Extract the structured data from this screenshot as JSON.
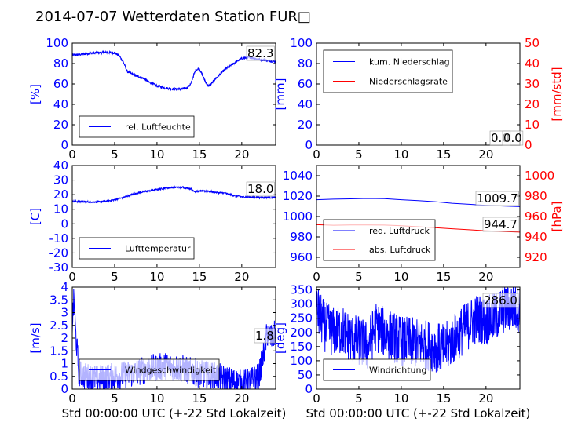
{
  "title": "2014-07-07 Wetterdaten Station FUR□",
  "colors": {
    "blue": "#0000ff",
    "red": "#ff0000",
    "black": "#000000"
  },
  "chart_data": [
    {
      "id": "humidity",
      "type": "line",
      "xlim": [
        0,
        24
      ],
      "ylim": [
        0,
        100
      ],
      "xticks": [
        0,
        5,
        10,
        15,
        20
      ],
      "yticks": [
        0,
        20,
        40,
        60,
        80,
        100
      ],
      "ylabel": "[%]",
      "legend_position": "lower-left",
      "annotation": "82.3",
      "series": [
        {
          "name": "rel. Luftfeuchte",
          "color": "#0000ff",
          "noise": 1.2,
          "x": [
            0,
            1,
            2,
            3,
            4,
            5,
            5.5,
            6,
            6.5,
            7,
            7.5,
            8,
            8.5,
            9,
            10,
            11,
            12,
            13,
            13.5,
            14,
            14.3,
            14.6,
            15,
            15.5,
            16,
            16.3,
            17,
            18,
            19,
            20,
            21,
            22,
            23,
            24
          ],
          "y": [
            88,
            89,
            90,
            90.5,
            91,
            90.5,
            88,
            82,
            72,
            70,
            68,
            67,
            65,
            62,
            58,
            56,
            55,
            55,
            56,
            60,
            68,
            74,
            75,
            66,
            58,
            59,
            66,
            74,
            80,
            85,
            86,
            84,
            83,
            82
          ]
        }
      ]
    },
    {
      "id": "precip",
      "type": "line",
      "xlim": [
        0,
        24
      ],
      "ylim": [
        0,
        100
      ],
      "y2lim": [
        0,
        50
      ],
      "xticks": [
        0,
        5,
        10,
        15,
        20
      ],
      "yticks": [
        0,
        20,
        40,
        60,
        80,
        100
      ],
      "y2ticks": [
        0,
        10,
        20,
        30,
        40,
        50
      ],
      "ylabel": "[mm]",
      "y2label": "[mm/std]",
      "legend_position": "upper-left",
      "annotation": "0.0",
      "annotation2": "0.0",
      "series": [
        {
          "name": "kum. Niederschlag",
          "color": "#0000ff",
          "x": [
            0,
            24
          ],
          "y": [
            0,
            0
          ]
        },
        {
          "name": "Niederschlagsrate",
          "color": "#ff0000",
          "x": [
            0,
            24
          ],
          "y": [
            0,
            0
          ],
          "axis": "right"
        }
      ]
    },
    {
      "id": "temperature",
      "type": "line",
      "xlim": [
        0,
        24
      ],
      "ylim": [
        -30,
        40
      ],
      "xticks": [
        0,
        5,
        10,
        15,
        20
      ],
      "yticks": [
        -30,
        -20,
        -10,
        0,
        10,
        20,
        30,
        40
      ],
      "ylabel": "[C]",
      "legend_position": "lower-left",
      "annotation": "18.0",
      "series": [
        {
          "name": "Lufttemperatur",
          "color": "#0000ff",
          "noise": 0.6,
          "x": [
            0,
            1,
            2,
            3,
            4,
            5,
            6,
            7,
            8,
            9,
            10,
            11,
            12,
            13,
            14,
            14.5,
            15,
            16,
            17,
            18,
            19,
            20,
            21,
            22,
            23,
            24
          ],
          "y": [
            15.5,
            15.2,
            15,
            15,
            15.5,
            16.5,
            18,
            20,
            21.5,
            22.5,
            23.5,
            24.5,
            25,
            25,
            24,
            22,
            22.5,
            22.5,
            21.5,
            21,
            19.5,
            18.5,
            18.5,
            18,
            18,
            18
          ]
        }
      ]
    },
    {
      "id": "pressure",
      "type": "line",
      "xlim": [
        0,
        24
      ],
      "ylim": [
        950,
        1050
      ],
      "y2lim": [
        910,
        1010
      ],
      "xticks": [
        0,
        5,
        10,
        15,
        20
      ],
      "yticks": [
        960,
        980,
        1000,
        1020,
        1040
      ],
      "y2ticks": [
        920,
        940,
        960,
        980,
        1000
      ],
      "ylabel": "",
      "y2label": "[hPa]",
      "legend_position": "lower-left",
      "annotation": "1009.7",
      "annotation2": "944.7",
      "series": [
        {
          "name": "red. Luftdruck",
          "color": "#0000ff",
          "x": [
            0,
            2,
            4,
            6,
            8,
            10,
            12,
            14,
            16,
            18,
            20,
            22,
            24
          ],
          "y": [
            1016.5,
            1017,
            1017.3,
            1017.7,
            1017.5,
            1016.5,
            1015.5,
            1014.5,
            1013,
            1012,
            1011,
            1010.3,
            1009.7
          ]
        },
        {
          "name": "abs. Luftdruck",
          "color": "#ff0000",
          "axis": "right",
          "x": [
            0,
            2,
            4,
            6,
            8,
            10,
            12,
            14,
            16,
            18,
            20,
            22,
            24
          ],
          "y": [
            952,
            951.5,
            951.7,
            951.8,
            951.6,
            951,
            950,
            949,
            948,
            947,
            946,
            945.3,
            944.7
          ]
        }
      ]
    },
    {
      "id": "wind-speed",
      "type": "line",
      "xlim": [
        0,
        24
      ],
      "ylim": [
        0,
        4
      ],
      "xticks": [
        0,
        5,
        10,
        15,
        20
      ],
      "yticks": [
        0,
        0.5,
        1.0,
        1.5,
        2.0,
        2.5,
        3.0,
        3.5,
        4.0
      ],
      "ylabel": "[m/s]",
      "xlabel": "Std 00:00:00 UTC (+-22 Std Lokalzeit)",
      "legend_position": "lower-left",
      "annotation": "1.8",
      "series": [
        {
          "name": "Windgeschwindigkeit",
          "color": "#0000ff",
          "noise": 0.55,
          "x": [
            0,
            0.2,
            0.4,
            0.8,
            1.5,
            3,
            5,
            7,
            9,
            11,
            13,
            15,
            17,
            19,
            20,
            21,
            22,
            22.5,
            23,
            23.5,
            24
          ],
          "y": [
            2.6,
            3.5,
            2.2,
            0.6,
            0.5,
            0.4,
            0.5,
            0.6,
            0.8,
            0.9,
            0.8,
            0.6,
            0.5,
            0.3,
            0.2,
            0.3,
            0.5,
            1.2,
            2.2,
            2.0,
            2.2
          ]
        }
      ]
    },
    {
      "id": "wind-direction",
      "type": "line",
      "xlim": [
        0,
        24
      ],
      "ylim": [
        0,
        360
      ],
      "xticks": [
        0,
        5,
        10,
        15,
        20
      ],
      "yticks": [
        0,
        50,
        100,
        150,
        200,
        250,
        300,
        350
      ],
      "ylabel": "[deg]",
      "xlabel": "Std 00:00:00 UTC (+-22 Std Lokalzeit)",
      "legend_position": "lower-left",
      "annotation": "286.0",
      "series": [
        {
          "name": "Windrichtung",
          "color": "#0000ff",
          "noise": 90,
          "x": [
            0,
            0.5,
            1,
            2,
            3,
            4,
            5,
            6,
            7,
            8,
            10,
            12,
            14,
            15,
            16,
            17,
            18,
            19,
            20,
            21,
            22,
            23,
            24
          ],
          "y": [
            280,
            250,
            220,
            200,
            210,
            180,
            170,
            150,
            220,
            200,
            170,
            160,
            150,
            140,
            170,
            200,
            230,
            250,
            240,
            250,
            280,
            290,
            286
          ]
        }
      ]
    }
  ]
}
